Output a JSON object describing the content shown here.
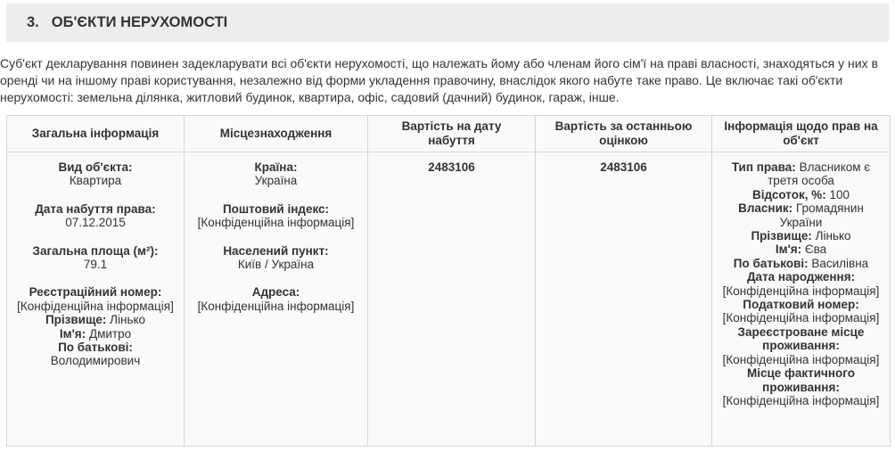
{
  "colors": {
    "header_bg": "#ededed",
    "table_border": "#d6d6d6",
    "cell_bg": "#fafafa",
    "text": "#333333"
  },
  "section": {
    "number": "3.",
    "title": "ОБ'ЄКТИ НЕРУХОМОСТІ",
    "description": "Суб'єкт декларування повинен задекларувати всі об'єкти нерухомості, що належать йому або членам його сім'ї на праві власності, знаходяться у них в оренді чи на іншому праві користування, незалежно від форми укладення правочину, внаслідок якого набуте таке право. Це включає такі об'єкти нерухомості: земельна ділянка, житловий будинок, квартира, офіс, садовий (дачний) будинок, гараж, інше."
  },
  "table": {
    "headers": [
      {
        "key": "general",
        "label": "Загальна інформація"
      },
      {
        "key": "location",
        "label": "Місцезнаходження"
      },
      {
        "key": "value-acquisition",
        "label": "Вартість на дату набуття"
      },
      {
        "key": "value-assessment",
        "label": "Вартість за останньою оцінкою"
      },
      {
        "key": "rights",
        "label": "Інформація щодо прав на об'єкт"
      }
    ],
    "row": {
      "general": {
        "fields": [
          {
            "label": "Вид об'єкта:",
            "value": "Квартира",
            "layout": "stacked",
            "gap_after": true
          },
          {
            "label": "Дата набуття права:",
            "value": "07.12.2015",
            "layout": "stacked",
            "gap_after": true
          },
          {
            "label": "Загальна площа (м²):",
            "value": "79.1",
            "layout": "stacked",
            "gap_after": true
          },
          {
            "label": "Реєстраційний номер:",
            "value": "[Конфіденційна інформація]",
            "layout": "stacked",
            "gap_after": false
          },
          {
            "label": "Прізвище:",
            "value": "Лінько",
            "layout": "inline",
            "gap_after": false
          },
          {
            "label": "Ім'я:",
            "value": "Дмитро",
            "layout": "inline",
            "gap_after": false
          },
          {
            "label": "По батькові:",
            "value": "Володимирович",
            "layout": "inline",
            "gap_after": false
          }
        ]
      },
      "location": {
        "fields": [
          {
            "label": "Країна:",
            "value": "Україна",
            "layout": "stacked",
            "gap_after": true
          },
          {
            "label": "Поштовий індекс:",
            "value": "[Конфіденційна інформація]",
            "layout": "stacked",
            "gap_after": true
          },
          {
            "label": "Населений пункт:",
            "value": "Київ / Україна",
            "layout": "stacked",
            "gap_after": true
          },
          {
            "label": "Адреса:",
            "value": "[Конфіденційна інформація]",
            "layout": "stacked",
            "gap_after": false
          }
        ]
      },
      "value_at_acquisition": "2483106",
      "value_last_assessment": "2483106",
      "rights": {
        "fields": [
          {
            "label": "Тип права:",
            "value": "Власником є третя особа",
            "layout": "inline",
            "gap_after": false
          },
          {
            "label": "Відсоток, %:",
            "value": "100",
            "layout": "inline",
            "gap_after": false
          },
          {
            "label": "Власник:",
            "value": "Громадянин України",
            "layout": "inline",
            "gap_after": false
          },
          {
            "label": "Прізвище:",
            "value": "Лінько",
            "layout": "inline",
            "gap_after": false
          },
          {
            "label": "Ім'я:",
            "value": "Єва",
            "layout": "inline",
            "gap_after": false
          },
          {
            "label": "По батькові:",
            "value": "Василівна",
            "layout": "inline",
            "gap_after": false
          },
          {
            "label": "Дата народження:",
            "value": "[Конфіденційна інформація]",
            "layout": "inline",
            "gap_after": false
          },
          {
            "label": "Податковий номер:",
            "value": "[Конфіденційна інформація]",
            "layout": "inline",
            "gap_after": false
          },
          {
            "label": "Зареєстроване місце проживання:",
            "value": "[Конфіденційна інформація]",
            "layout": "inline",
            "gap_after": false
          },
          {
            "label": "Місце фактичного проживання:",
            "value": "[Конфіденційна інформація]",
            "layout": "inline",
            "gap_after": false
          }
        ]
      }
    }
  }
}
